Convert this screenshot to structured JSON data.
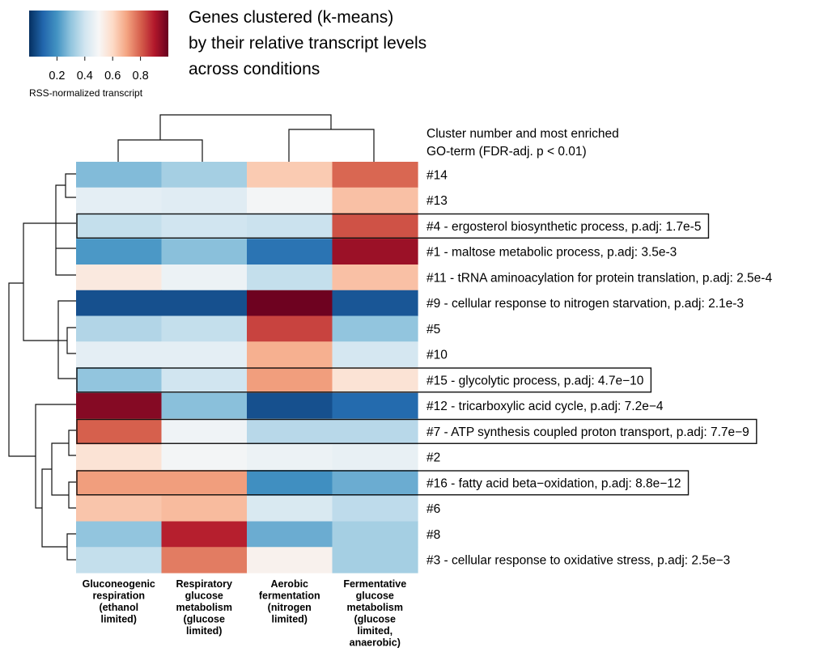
{
  "chart_data": {
    "type": "heatmap",
    "title": [
      "Genes clustered (k-means)",
      "by their relative transcript levels",
      "across conditions"
    ],
    "colorbar": {
      "label": "RSS-normalized transcript",
      "ticks": [
        "0.2",
        "0.4",
        "0.6",
        "0.8"
      ],
      "range": [
        0.0,
        1.0
      ],
      "colors": [
        "#053061",
        "#2166ac",
        "#4393c3",
        "#92c5de",
        "#d1e5f0",
        "#f7f7f7",
        "#fddbc7",
        "#f4a582",
        "#d6604d",
        "#b2182b",
        "#67001f"
      ]
    },
    "row_legend_header": [
      "Cluster number and most enriched",
      "GO-term (FDR-adj. p < 0.01)"
    ],
    "columns": [
      {
        "label": [
          "Gluconeogenic",
          "respiration",
          "(ethanol",
          "limited)"
        ]
      },
      {
        "label": [
          "Respiratory",
          "glucose",
          "metabolism",
          "(glucose",
          "limited)"
        ]
      },
      {
        "label": [
          "Aerobic",
          "fermentation",
          "(nitrogen",
          "limited)"
        ]
      },
      {
        "label": [
          "Fermentative",
          "glucose",
          "metabolism",
          "(glucose",
          "limited,",
          "anaerobic)"
        ]
      }
    ],
    "rows": [
      {
        "label": "#14",
        "boxed": false,
        "values": [
          0.28,
          0.33,
          0.63,
          0.79
        ]
      },
      {
        "label": "#13",
        "boxed": false,
        "values": [
          0.45,
          0.44,
          0.49,
          0.65
        ]
      },
      {
        "label": "#4 - ergosterol biosynthetic process, p.adj: 1.7e-5",
        "boxed": true,
        "values": [
          0.38,
          0.4,
          0.39,
          0.82
        ]
      },
      {
        "label": "#1 - maltose metabolic process, p.adj: 3.5e-3",
        "boxed": false,
        "values": [
          0.21,
          0.29,
          0.13,
          0.93
        ]
      },
      {
        "label": "#11 - tRNA aminoacylation for protein translation, p.adj: 2.5e-4",
        "boxed": false,
        "values": [
          0.55,
          0.47,
          0.38,
          0.65
        ]
      },
      {
        "label": "#9 - cellular response to nitrogen starvation, p.adj: 2.1e-3",
        "boxed": false,
        "values": [
          0.06,
          0.06,
          0.99,
          0.07
        ]
      },
      {
        "label": "#5",
        "boxed": false,
        "values": [
          0.35,
          0.38,
          0.84,
          0.3
        ]
      },
      {
        "label": "#10",
        "boxed": false,
        "values": [
          0.45,
          0.45,
          0.68,
          0.41
        ]
      },
      {
        "label": "#15 - glycolytic process, p.adj: 4.7e−10",
        "boxed": true,
        "values": [
          0.3,
          0.4,
          0.71,
          0.57
        ]
      },
      {
        "label": "#12 - tricarboxylic acid cycle, p.adj: 7.2e−4",
        "boxed": false,
        "values": [
          0.96,
          0.29,
          0.06,
          0.11
        ]
      },
      {
        "label": "#7 - ATP synthesis coupled proton transport, p.adj: 7.7e−9",
        "boxed": true,
        "values": [
          0.8,
          0.48,
          0.36,
          0.36
        ]
      },
      {
        "label": "#2",
        "boxed": false,
        "values": [
          0.57,
          0.49,
          0.47,
          0.46
        ]
      },
      {
        "label": "#16 - fatty acid beta−oxidation, p.adj: 8.8e−12",
        "boxed": true,
        "values": [
          0.71,
          0.71,
          0.19,
          0.25
        ]
      },
      {
        "label": "#6",
        "boxed": false,
        "values": [
          0.64,
          0.66,
          0.42,
          0.37
        ]
      },
      {
        "label": "#8",
        "boxed": false,
        "values": [
          0.3,
          0.89,
          0.25,
          0.33
        ]
      },
      {
        "label": "#3 - cellular response to oxidative stress, p.adj: 2.5e−3",
        "boxed": false,
        "values": [
          0.38,
          0.76,
          0.52,
          0.33
        ]
      }
    ],
    "column_dendrogram": "((Gluconeogenic respiration, Respiratory glucose metabolism), (Aerobic fermentation, Fermentative glucose metabolism))",
    "row_dendrogram": "((((#14,#13),#4,#1,#11),(#9,(#5,#10),#15)),(#12,(#7,#2),(#16,#6),(#8,#3)))"
  }
}
